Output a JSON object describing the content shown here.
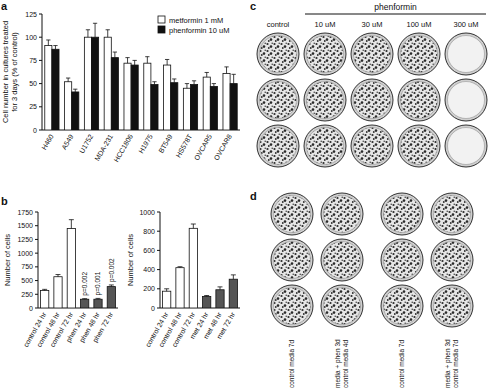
{
  "chart_data": [
    {
      "type": "bar",
      "label": "a",
      "y_label": [
        "Cell number in cultures treated",
        "for 3 days (% of control)"
      ],
      "categories": [
        "H460",
        "A549",
        "U1752",
        "MDA-231",
        "HCC1806",
        "H1975",
        "BT549",
        "HS578T",
        "OVCAR5",
        "OVCAR8"
      ],
      "series": [
        {
          "name": "metformin 1 mM",
          "color": "#ffffff",
          "values": [
            91,
            52,
            100,
            100,
            72,
            72,
            70,
            45,
            57,
            61
          ],
          "errors": [
            6,
            4,
            8,
            8,
            6,
            7,
            6,
            5,
            5,
            7
          ]
        },
        {
          "name": "phenformin 10 uM",
          "color": "#111111",
          "values": [
            87,
            41,
            100,
            78,
            70,
            49,
            51,
            49,
            47,
            50
          ],
          "errors": [
            4,
            3,
            15,
            6,
            5,
            3,
            4,
            4,
            3,
            10
          ]
        }
      ],
      "ylim": [
        0,
        125
      ],
      "yticks": [
        0,
        25,
        50,
        75,
        100,
        125
      ],
      "legend": "upper right"
    },
    {
      "type": "bar",
      "label": "b",
      "y_label": "Number of cells",
      "categories": [
        "control 24 hr",
        "control 48 hr",
        "control 72 hr",
        "phen 24 hr",
        "phen 48 hr",
        "phen 72 hr"
      ],
      "values": [
        320,
        570,
        1450,
        160,
        160,
        390
      ],
      "errors": [
        20,
        40,
        160,
        10,
        15,
        30
      ],
      "colors": [
        "#ffffff",
        "#ffffff",
        "#ffffff",
        "#555555",
        "#555555",
        "#555555"
      ],
      "annotations": [
        null,
        null,
        null,
        "p=0.002",
        "p=0.001",
        "p=0.002"
      ],
      "ylim": [
        0,
        1750
      ],
      "yticks": [
        0,
        250,
        500,
        750,
        1000,
        1250,
        1500,
        1750
      ]
    },
    {
      "type": "bar",
      "y_label": "Number of cells",
      "categories": [
        "control 24 hr",
        "control 48 hr",
        "control 72 hr",
        "met 24 hr",
        "met 48 hr",
        "met 72 hr"
      ],
      "values": [
        175,
        420,
        830,
        120,
        190,
        300
      ],
      "errors": [
        25,
        10,
        45,
        10,
        30,
        45
      ],
      "colors": [
        "#ffffff",
        "#ffffff",
        "#ffffff",
        "#555555",
        "#555555",
        "#555555"
      ],
      "ylim": [
        0,
        1000
      ],
      "yticks": [
        0,
        200,
        400,
        600,
        800,
        1000
      ]
    }
  ],
  "plates": [
    {
      "label": "c",
      "title": "phenformin",
      "columns": [
        "control",
        "10 uM",
        "30 uM",
        "100 uM",
        "300 uM"
      ],
      "rows": 3,
      "colonies": [
        true,
        true,
        true,
        true,
        false
      ]
    },
    {
      "label": "d",
      "groups": [
        {
          "columns": [
            [
              "control media 7d"
            ],
            [
              "media + phen 3d",
              "control media 4d"
            ]
          ]
        },
        {
          "columns": [
            [
              "control media 7d"
            ],
            [
              "media + phen 3d",
              "control media 7d"
            ]
          ]
        }
      ],
      "rows": 3
    }
  ]
}
